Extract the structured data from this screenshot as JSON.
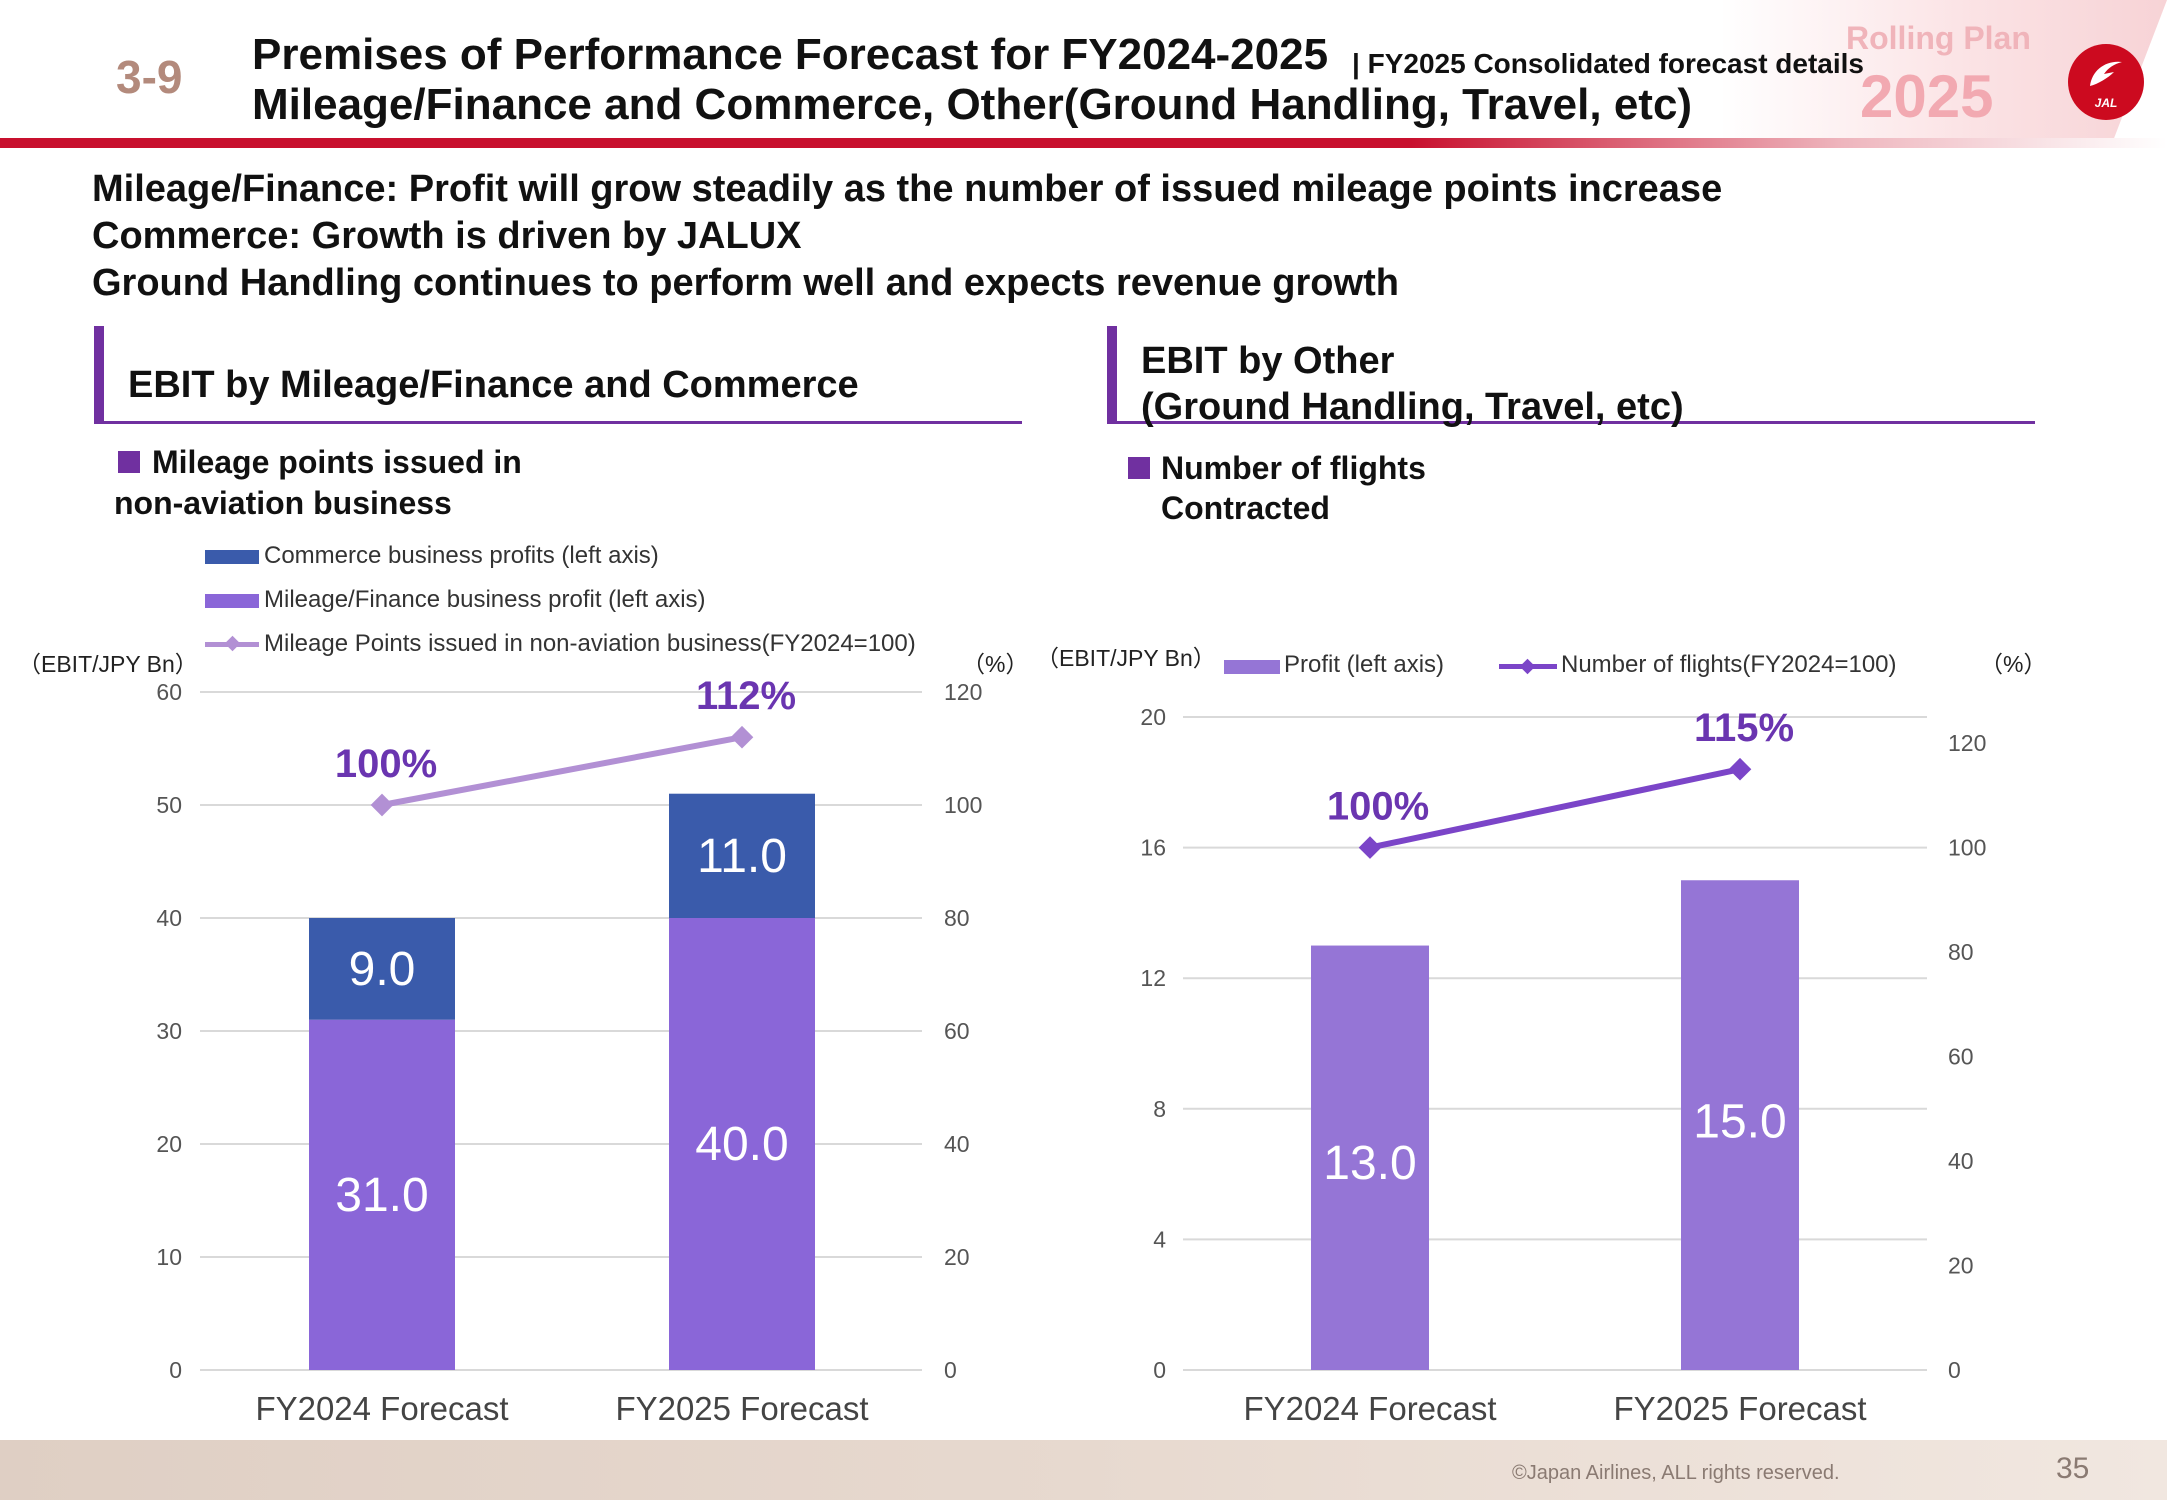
{
  "header": {
    "page_number": "3-9",
    "title_line1": "Premises of Performance Forecast for FY2024-2025",
    "title_sub": "| FY2025 Consolidated forecast details",
    "title_line2": "Mileage/Finance and Commerce, Other(Ground Handling, Travel, etc)",
    "plan_label": "Rolling Plan",
    "plan_year": "2025",
    "logo_text": "JAL"
  },
  "messages": [
    "Mileage/Finance: Profit will grow steadily as the number of issued mileage points increase",
    "Commerce: Growth is driven by JALUX",
    "Ground Handling continues to perform well and expects revenue growth"
  ],
  "left_section": {
    "title": "EBIT by Mileage/Finance and Commerce",
    "bullet_line1": "Mileage points issued in",
    "bullet_line2": "non-aviation business"
  },
  "right_section": {
    "title_line1": "EBIT by Other",
    "title_line2": "(Ground Handling, Travel, etc)",
    "bullet_line1": "Number of flights",
    "bullet_line2": "Contracted"
  },
  "colors": {
    "commerce": "#3a5bab",
    "mileage": "#8a66d8",
    "mileage_line": "#b290d4",
    "other_bar": "#9575d6",
    "other_line": "#7b45c8",
    "pct_label": "#6a35b0",
    "grid": "#d9d9d9",
    "accent": "#7030a0",
    "jal_red": "#cc0a1f"
  },
  "chart_data": [
    {
      "type": "bar",
      "stacked": true,
      "categories": [
        "FY2024 Forecast",
        "FY2025 Forecast"
      ],
      "left_axis_label": "（EBIT/JPY Bn）",
      "right_axis_label": "（%）",
      "left_ticks": [
        "0",
        "10",
        "20",
        "30",
        "40",
        "50",
        "60"
      ],
      "right_ticks": [
        "0",
        "20",
        "40",
        "60",
        "80",
        "100",
        "120"
      ],
      "ylim": [
        0,
        60
      ],
      "y2lim": [
        0,
        120
      ],
      "series": [
        {
          "name": "Mileage/Finance business profit (left axis)",
          "kind": "bar",
          "values": [
            31.0,
            40.0
          ],
          "labels": [
            "31.0",
            "40.0"
          ]
        },
        {
          "name": "Commerce business profits (left axis)",
          "kind": "bar",
          "values": [
            9.0,
            11.0
          ],
          "labels": [
            "9.0",
            "11.0"
          ]
        },
        {
          "name": "Mileage Points issued in non-aviation business(FY2024=100)",
          "kind": "line",
          "axis": "right",
          "values": [
            100,
            112
          ],
          "labels": [
            "100%",
            "112%"
          ]
        }
      ],
      "legend": [
        "Commerce business profits (left axis)",
        "Mileage/Finance business profit (left axis)",
        "Mileage Points issued in non-aviation business(FY2024=100)"
      ],
      "grid": true
    },
    {
      "type": "bar",
      "categories": [
        "FY2024 Forecast",
        "FY2025 Forecast"
      ],
      "left_axis_label": "（EBIT/JPY Bn）",
      "right_axis_label": "（%）",
      "left_ticks": [
        "0",
        "4",
        "8",
        "12",
        "16",
        "20"
      ],
      "right_ticks": [
        "0",
        "20",
        "40",
        "60",
        "80",
        "100",
        "120"
      ],
      "ylim": [
        0,
        20
      ],
      "y2lim": [
        0,
        125
      ],
      "series": [
        {
          "name": "Profit (left axis)",
          "kind": "bar",
          "values": [
            13.0,
            15.0
          ],
          "labels": [
            "13.0",
            "15.0"
          ]
        },
        {
          "name": "Number of flights(FY2024=100)",
          "kind": "line",
          "axis": "right",
          "values": [
            100,
            115
          ],
          "labels": [
            "100%",
            "115%"
          ]
        }
      ],
      "legend": [
        "Profit (left axis)",
        "Number of flights(FY2024=100)"
      ],
      "grid": true
    }
  ],
  "footer": {
    "copyright": "©Japan Airlines, ALL rights reserved.",
    "slide_number": "35"
  }
}
